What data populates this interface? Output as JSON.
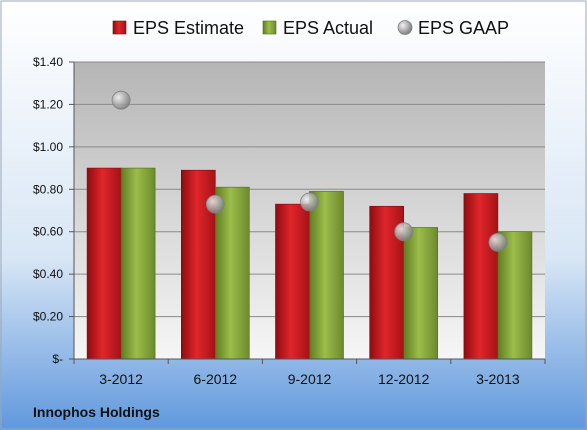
{
  "chart_data": {
    "type": "bar",
    "categories": [
      "3-2012",
      "6-2012",
      "9-2012",
      "12-2012",
      "3-2013"
    ],
    "series": [
      {
        "name": "EPS Estimate",
        "kind": "bar",
        "color": "#c0161b",
        "values": [
          0.9,
          0.89,
          0.73,
          0.72,
          0.78
        ]
      },
      {
        "name": "EPS Actual",
        "kind": "bar",
        "color": "#8aaa3a",
        "values": [
          0.9,
          0.81,
          0.79,
          0.62,
          0.6
        ]
      },
      {
        "name": "EPS GAAP",
        "kind": "scatter",
        "color": "#b8b8b8",
        "values": [
          1.22,
          0.73,
          0.74,
          0.6,
          0.55
        ]
      }
    ],
    "yticks": [
      {
        "value": 0,
        "label": "$-"
      },
      {
        "value": 0.2,
        "label": "$0.20"
      },
      {
        "value": 0.4,
        "label": "$0.40"
      },
      {
        "value": 0.6,
        "label": "$0.60"
      },
      {
        "value": 0.8,
        "label": "$0.80"
      },
      {
        "value": 1.0,
        "label": "$1.00"
      },
      {
        "value": 1.2,
        "label": "$1.20"
      },
      {
        "value": 1.4,
        "label": "$1.40"
      }
    ],
    "ylim": [
      0,
      1.4
    ],
    "grid": true,
    "legend_position": "top",
    "title": "",
    "xlabel": "",
    "ylabel": ""
  },
  "footer": {
    "company": "Innophos Holdings"
  }
}
